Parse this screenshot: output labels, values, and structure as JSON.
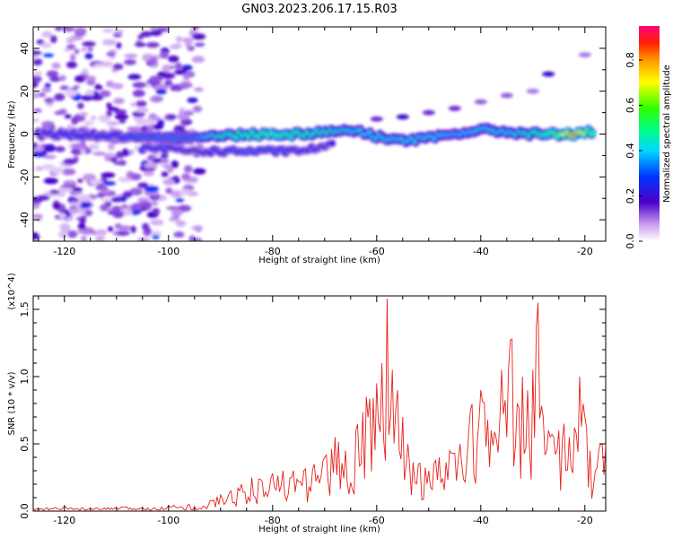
{
  "title": "GN03.2023.206.17.15.R03",
  "chart_data": [
    {
      "type": "heatmap",
      "xlabel": "Height of straight line (km)",
      "ylabel": "Frequency (Hz)",
      "xlim": [
        -126,
        -16
      ],
      "ylim": [
        -50,
        50
      ],
      "xticks": [
        -120,
        -100,
        -80,
        -60,
        -40,
        -20
      ],
      "yticks": [
        -40,
        -20,
        0,
        20,
        40
      ],
      "colorbar": {
        "label": "Normalized spectral amplitude",
        "ticks": [
          "0.0",
          "0.2",
          "0.4",
          "0.6",
          "0.8"
        ],
        "range": [
          0,
          0.95
        ]
      },
      "main_band": [
        {
          "x": -125,
          "y": 0,
          "a": 0.25
        },
        {
          "x": -120,
          "y": 0,
          "a": 0.3
        },
        {
          "x": -110,
          "y": -1,
          "a": 0.3
        },
        {
          "x": -105,
          "y": -2,
          "a": 0.35
        },
        {
          "x": -100,
          "y": -2,
          "a": 0.35
        },
        {
          "x": -95,
          "y": -1,
          "a": 0.35
        },
        {
          "x": -90,
          "y": -1,
          "a": 0.5
        },
        {
          "x": -85,
          "y": 0,
          "a": 0.55
        },
        {
          "x": -80,
          "y": 0,
          "a": 0.6
        },
        {
          "x": -75,
          "y": 0,
          "a": 0.55
        },
        {
          "x": -70,
          "y": 1,
          "a": 0.5
        },
        {
          "x": -65,
          "y": 2,
          "a": 0.45
        },
        {
          "x": -60,
          "y": -1,
          "a": 0.45
        },
        {
          "x": -55,
          "y": -3,
          "a": 0.45
        },
        {
          "x": -50,
          "y": -2,
          "a": 0.45
        },
        {
          "x": -45,
          "y": 0,
          "a": 0.4
        },
        {
          "x": -40,
          "y": 2,
          "a": 0.45
        },
        {
          "x": -35,
          "y": 1,
          "a": 0.45
        },
        {
          "x": -30,
          "y": 0,
          "a": 0.5
        },
        {
          "x": -25,
          "y": 0,
          "a": 0.65
        },
        {
          "x": -22,
          "y": 0,
          "a": 0.9
        },
        {
          "x": -18,
          "y": 1,
          "a": 0.5
        }
      ],
      "secondary_band": [
        {
          "x": -105,
          "y": -7,
          "a": 0.3
        },
        {
          "x": -100,
          "y": -7,
          "a": 0.3
        },
        {
          "x": -95,
          "y": -8,
          "a": 0.25
        },
        {
          "x": -85,
          "y": -8,
          "a": 0.35
        },
        {
          "x": -75,
          "y": -8,
          "a": 0.3
        },
        {
          "x": -68,
          "y": -5,
          "a": 0.25
        }
      ],
      "upper_streak": [
        {
          "x": -60,
          "y": 7,
          "a": 0.15
        },
        {
          "x": -55,
          "y": 8,
          "a": 0.2
        },
        {
          "x": -50,
          "y": 10,
          "a": 0.15
        },
        {
          "x": -45,
          "y": 12,
          "a": 0.15
        },
        {
          "x": -40,
          "y": 15,
          "a": 0.12
        },
        {
          "x": -35,
          "y": 18,
          "a": 0.12
        },
        {
          "x": -30,
          "y": 20,
          "a": 0.1
        },
        {
          "x": -27,
          "y": 28,
          "a": 0.2
        },
        {
          "x": -20,
          "y": 37,
          "a": 0.1
        }
      ],
      "noise_region": {
        "x": [
          -126,
          -94
        ],
        "y": [
          -50,
          50
        ],
        "a": 0.15
      }
    },
    {
      "type": "line",
      "xlabel": "Height of straight line (km)",
      "ylabel": "SNR (10 * v/v)",
      "multiplier": "(x10^4)",
      "xlim": [
        -126,
        -16
      ],
      "ylim": [
        0,
        1.6
      ],
      "xticks": [
        -120,
        -100,
        -80,
        -60,
        -40,
        -20
      ],
      "yticks": [
        "0.0",
        "0.5",
        "1.0",
        "1.5"
      ],
      "series": [
        {
          "color": "#e8211b",
          "x": [
            -126,
            -120,
            -115,
            -110,
            -105,
            -100,
            -96,
            -94,
            -92,
            -90,
            -88,
            -86,
            -84,
            -82,
            -80,
            -78,
            -76,
            -74,
            -72,
            -70,
            -68,
            -66,
            -64,
            -62,
            -60,
            -59,
            -58,
            -57,
            -56,
            -55,
            -54,
            -52,
            -50,
            -48,
            -46,
            -44,
            -42,
            -40,
            -38,
            -36,
            -34,
            -33,
            -32,
            -31,
            -30,
            -29,
            -28,
            -27,
            -26,
            -25,
            -24,
            -23,
            -22,
            -21,
            -20,
            -19,
            -18,
            -17,
            -16
          ],
          "y": [
            0.02,
            0.03,
            0.02,
            0.03,
            0.03,
            0.04,
            0.05,
            0.02,
            0.08,
            0.12,
            0.15,
            0.2,
            0.25,
            0.22,
            0.28,
            0.3,
            0.3,
            0.3,
            0.35,
            0.4,
            0.55,
            0.45,
            0.6,
            0.85,
            0.95,
            1.1,
            1.58,
            1.05,
            0.9,
            0.7,
            0.5,
            0.35,
            0.3,
            0.4,
            0.45,
            0.5,
            0.75,
            0.9,
            0.6,
            1.05,
            1.28,
            0.8,
            1.0,
            0.9,
            1.05,
            1.55,
            0.7,
            0.6,
            0.55,
            0.6,
            0.65,
            0.55,
            0.62,
            1.0,
            0.7,
            0.45,
            0.3,
            0.5,
            0.5
          ]
        }
      ]
    }
  ]
}
